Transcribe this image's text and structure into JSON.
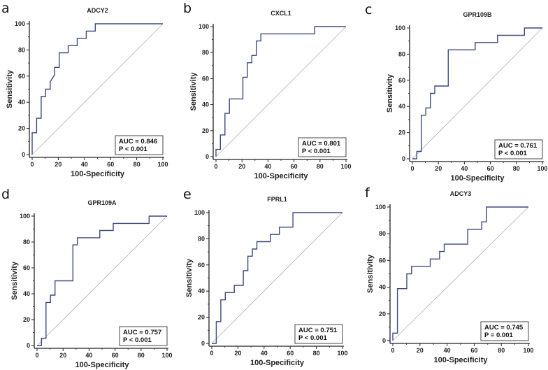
{
  "chart_data": [
    {
      "panel": "a",
      "type": "line",
      "title": "ADCY2",
      "xlabel": "100-Specificity",
      "ylabel": "Sensitivity",
      "xlim": [
        0,
        100
      ],
      "ylim": [
        0,
        100
      ],
      "xticks": [
        "0",
        "20",
        "40",
        "60",
        "80",
        "100"
      ],
      "yticks": [
        "0",
        "20",
        "40",
        "60",
        "80",
        "100"
      ],
      "auc_text": "AUC = 0.846",
      "p_text": "P < 0.001",
      "points": [
        [
          0,
          0
        ],
        [
          0,
          16.7
        ],
        [
          3.4,
          16.7
        ],
        [
          3.4,
          27.8
        ],
        [
          6.9,
          27.8
        ],
        [
          6.9,
          44.4
        ],
        [
          10.3,
          44.4
        ],
        [
          10.3,
          50
        ],
        [
          13.8,
          50
        ],
        [
          13.8,
          55.6
        ],
        [
          17.2,
          61.1
        ],
        [
          17.2,
          66.7
        ],
        [
          20.7,
          66.7
        ],
        [
          20.7,
          77.8
        ],
        [
          27.6,
          77.8
        ],
        [
          27.6,
          83.3
        ],
        [
          34.5,
          83.3
        ],
        [
          34.5,
          88.9
        ],
        [
          41.4,
          88.9
        ],
        [
          41.4,
          94.4
        ],
        [
          48.3,
          94.4
        ],
        [
          48.3,
          100
        ],
        [
          100,
          100
        ]
      ]
    },
    {
      "panel": "b",
      "type": "line",
      "title": "CXCL1",
      "xlabel": "100-Specificity",
      "ylabel": "Sensitivity",
      "xlim": [
        0,
        100
      ],
      "ylim": [
        0,
        100
      ],
      "xticks": [
        "0",
        "20",
        "40",
        "60",
        "80",
        "100"
      ],
      "yticks": [
        "0",
        "20",
        "40",
        "60",
        "80",
        "100"
      ],
      "auc_text": "AUC = 0.801",
      "p_text": "P < 0.001",
      "points": [
        [
          0,
          0
        ],
        [
          0,
          5.6
        ],
        [
          3.4,
          5.6
        ],
        [
          3.4,
          16.7
        ],
        [
          6.9,
          16.7
        ],
        [
          6.9,
          33.3
        ],
        [
          10.3,
          33.3
        ],
        [
          10.3,
          44.4
        ],
        [
          20.7,
          44.4
        ],
        [
          20.7,
          61.1
        ],
        [
          24.1,
          61.1
        ],
        [
          24.1,
          72.2
        ],
        [
          27.6,
          72.2
        ],
        [
          27.6,
          77.8
        ],
        [
          31,
          77.8
        ],
        [
          31,
          88.9
        ],
        [
          34.5,
          88.9
        ],
        [
          34.5,
          94.4
        ],
        [
          75.9,
          94.4
        ],
        [
          75.9,
          100
        ],
        [
          100,
          100
        ]
      ]
    },
    {
      "panel": "c",
      "type": "line",
      "title": "GPR109B",
      "xlabel": "100-Specificity",
      "ylabel": "Sensitivity",
      "xlim": [
        0,
        100
      ],
      "ylim": [
        0,
        100
      ],
      "xticks": [
        "0",
        "20",
        "40",
        "60",
        "80",
        "100"
      ],
      "yticks": [
        "0",
        "20",
        "40",
        "60",
        "80",
        "100"
      ],
      "auc_text": "AUC = 0.761",
      "p_text": "P < 0.001",
      "points": [
        [
          0,
          0
        ],
        [
          3.4,
          0
        ],
        [
          3.4,
          5.6
        ],
        [
          6.9,
          5.6
        ],
        [
          6.9,
          33.3
        ],
        [
          10.3,
          33.3
        ],
        [
          10.3,
          38.9
        ],
        [
          13.8,
          38.9
        ],
        [
          13.8,
          50
        ],
        [
          17.2,
          50
        ],
        [
          17.2,
          55.6
        ],
        [
          27.6,
          55.6
        ],
        [
          27.6,
          83.3
        ],
        [
          48.3,
          83.3
        ],
        [
          48.3,
          88.9
        ],
        [
          65.5,
          88.9
        ],
        [
          65.5,
          94.4
        ],
        [
          86.2,
          94.4
        ],
        [
          86.2,
          100
        ],
        [
          100,
          100
        ]
      ]
    },
    {
      "panel": "d",
      "type": "line",
      "title": "GPR109A",
      "xlabel": "100-Specificity",
      "ylabel": "Sensitivity",
      "xlim": [
        0,
        100
      ],
      "ylim": [
        0,
        100
      ],
      "xticks": [
        "0",
        "20",
        "40",
        "60",
        "80",
        "100"
      ],
      "yticks": [
        "0",
        "20",
        "40",
        "60",
        "80",
        "100"
      ],
      "auc_text": "AUC = 0.757",
      "p_text": "P < 0.001",
      "points": [
        [
          0,
          0
        ],
        [
          3.4,
          0
        ],
        [
          3.4,
          5.6
        ],
        [
          6.9,
          5.6
        ],
        [
          6.9,
          33.3
        ],
        [
          10.3,
          33.3
        ],
        [
          10.3,
          38.9
        ],
        [
          13.8,
          38.9
        ],
        [
          13.8,
          50
        ],
        [
          27.6,
          50
        ],
        [
          27.6,
          77.8
        ],
        [
          31,
          77.8
        ],
        [
          31,
          83.3
        ],
        [
          48.3,
          83.3
        ],
        [
          48.3,
          88.9
        ],
        [
          58.6,
          88.9
        ],
        [
          58.6,
          94.4
        ],
        [
          86.2,
          94.4
        ],
        [
          86.2,
          100
        ],
        [
          100,
          100
        ]
      ]
    },
    {
      "panel": "e",
      "type": "line",
      "title": "FPRL1",
      "xlabel": "100-Specificity",
      "ylabel": "Sensitivity",
      "xlim": [
        0,
        100
      ],
      "ylim": [
        0,
        100
      ],
      "xticks": [
        "0",
        "20",
        "40",
        "60",
        "80",
        "100"
      ],
      "yticks": [
        "0",
        "20",
        "40",
        "60",
        "80",
        "100"
      ],
      "auc_text": "AUC = 0.751",
      "p_text": "P < 0.001",
      "points": [
        [
          0,
          0
        ],
        [
          3.4,
          0
        ],
        [
          3.4,
          16.7
        ],
        [
          6.9,
          16.7
        ],
        [
          6.9,
          33.3
        ],
        [
          10.3,
          33.3
        ],
        [
          10.3,
          38.9
        ],
        [
          17.2,
          38.9
        ],
        [
          17.2,
          44.4
        ],
        [
          24.1,
          44.4
        ],
        [
          24.1,
          55.6
        ],
        [
          27.6,
          55.6
        ],
        [
          27.6,
          66.7
        ],
        [
          31,
          66.7
        ],
        [
          31,
          72.2
        ],
        [
          34.5,
          72.2
        ],
        [
          34.5,
          77.8
        ],
        [
          44.8,
          77.8
        ],
        [
          44.8,
          83.3
        ],
        [
          51.7,
          83.3
        ],
        [
          51.7,
          88.9
        ],
        [
          62.1,
          88.9
        ],
        [
          62.1,
          100
        ],
        [
          100,
          100
        ]
      ]
    },
    {
      "panel": "f",
      "type": "line",
      "title": "ADCY3",
      "xlabel": "100-Specificity",
      "ylabel": "Sensitivity",
      "xlim": [
        0,
        100
      ],
      "ylim": [
        0,
        100
      ],
      "xticks": [
        "0",
        "20",
        "40",
        "60",
        "80",
        "100"
      ],
      "yticks": [
        "0",
        "20",
        "40",
        "60",
        "80",
        "100"
      ],
      "auc_text": "AUC = 0.745",
      "p_text": "P = 0.001",
      "points": [
        [
          0,
          0
        ],
        [
          0,
          5.6
        ],
        [
          3.4,
          5.6
        ],
        [
          3.4,
          38.9
        ],
        [
          10.3,
          38.9
        ],
        [
          10.3,
          50
        ],
        [
          13.8,
          50
        ],
        [
          13.8,
          55.6
        ],
        [
          27.6,
          55.6
        ],
        [
          27.6,
          61.1
        ],
        [
          34.5,
          61.1
        ],
        [
          34.5,
          66.7
        ],
        [
          37.9,
          66.7
        ],
        [
          37.9,
          72.2
        ],
        [
          55.2,
          72.2
        ],
        [
          55.2,
          83.3
        ],
        [
          65.5,
          83.3
        ],
        [
          65.5,
          88.9
        ],
        [
          69,
          88.9
        ],
        [
          69,
          100
        ],
        [
          100,
          100
        ]
      ]
    }
  ],
  "colors": {
    "curve": "#3d4a80",
    "diagonal": "#b0b0b0",
    "axis": "#222222"
  }
}
